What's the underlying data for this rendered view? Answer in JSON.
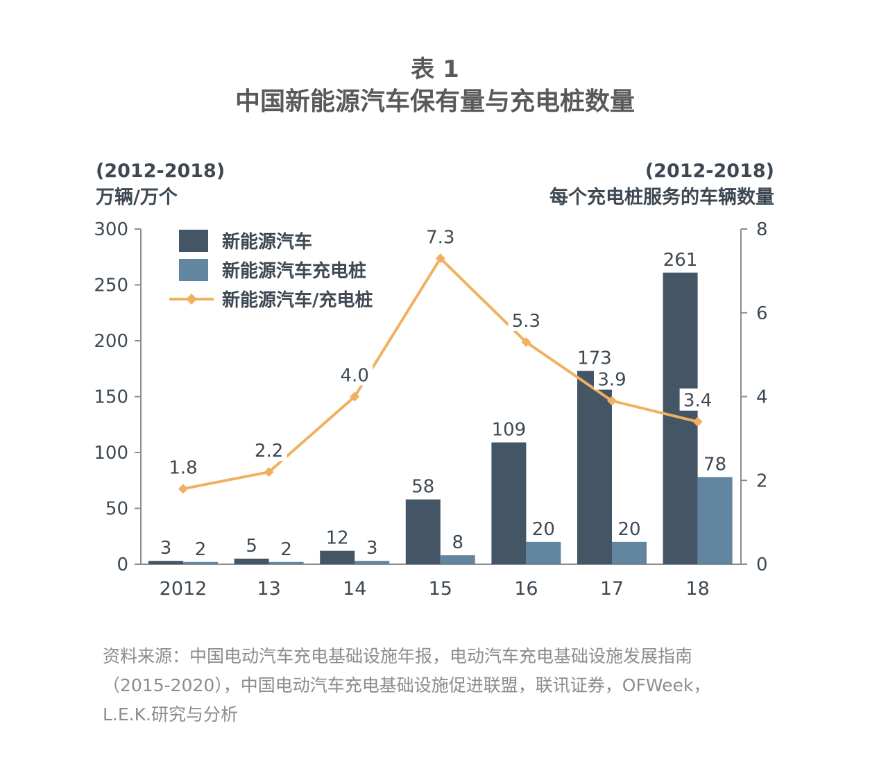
{
  "title": {
    "line1": "表 1",
    "line2": "中国新能源汽车保有量与充电桩数量"
  },
  "left_axis_caption": {
    "line1": "(2012-2018)",
    "line2": "万辆/万个"
  },
  "right_axis_caption": {
    "line1": "(2012-2018)",
    "line2": "每个充电桩服务的车辆数量"
  },
  "source": "资料来源：中国电动汽车充电基础设施年报，电动汽车充电基础设施发展指南（2015-2020），中国电动汽车充电基础设施促进联盟，联讯证券，OFWeek，L.E.K.研究与分析",
  "colors": {
    "ev": "#445566",
    "pile": "#6286a0",
    "ratio": "#f0b060",
    "axis": "#8a8c8e",
    "text": "#3d4852"
  },
  "chart_data": {
    "type": "bar",
    "categories": [
      "2012",
      "13",
      "14",
      "15",
      "16",
      "17",
      "18"
    ],
    "series": [
      {
        "name": "新能源汽车",
        "kind": "bar",
        "axis": "left",
        "values": [
          3,
          5,
          12,
          58,
          109,
          173,
          261
        ]
      },
      {
        "name": "新能源汽车充电桩",
        "kind": "bar",
        "axis": "left",
        "values": [
          2,
          2,
          3,
          8,
          20,
          20,
          78
        ]
      },
      {
        "name": "新能源汽车/充电桩",
        "kind": "line",
        "axis": "right",
        "values": [
          1.8,
          2.2,
          4.0,
          7.3,
          5.3,
          3.9,
          3.4
        ],
        "labels": [
          "1.8",
          "2.2",
          "4.0",
          "7.3",
          "5.3",
          "3.9",
          "3.4"
        ]
      }
    ],
    "y_left": {
      "lim": [
        0,
        300
      ],
      "ticks": [
        0,
        50,
        100,
        150,
        200,
        250,
        300
      ]
    },
    "y_right": {
      "lim": [
        0,
        8
      ],
      "ticks": [
        0,
        2,
        4,
        6,
        8
      ]
    },
    "legend_position": "top-left",
    "grid": false
  }
}
